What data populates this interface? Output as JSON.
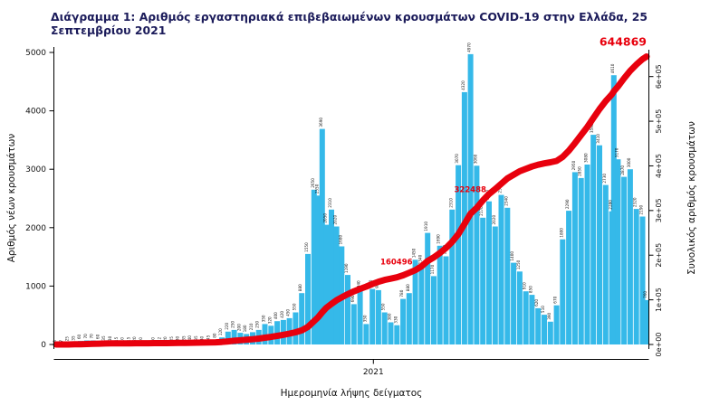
{
  "title": "Διάγραμμα 1: Αριθμός εργαστηριακά επιβεβαιωμένων κρουσμάτων COVID-19 στην Ελλάδα, 25 Σεπτεμβρίου 2021",
  "colors": {
    "bars": "#35b9e9",
    "line": "#e8000d",
    "annotation": "#e8000d",
    "title_text": "#1b1b5a"
  },
  "chart_data": {
    "type": "bar",
    "subtype": "bar+line dual-axis",
    "title": "Διάγραμμα 1: Αριθμός εργαστηριακά επιβεβαιωμένων κρουσμάτων COVID-19 στην Ελλάδα, 25 Σεπτεμβρίου 2021",
    "xlabel": "Ημερομηνία λήψης δείγματος",
    "ylabel_left": "Αριθμός νέων κρουσμάτων",
    "ylabel_right": "Συνολικός αριθμός κρουσμάτων",
    "ylim_left": [
      0,
      5000
    ],
    "ylim_right": [
      0,
      650000
    ],
    "yticks_left": [
      0,
      1000,
      2000,
      3000,
      4000,
      5000
    ],
    "yticks_right": [
      {
        "value": 0,
        "label": "0e+00"
      },
      {
        "value": 100000,
        "label": "1e+05"
      },
      {
        "value": 200000,
        "label": "2e+05"
      },
      {
        "value": 300000,
        "label": "3e+05"
      },
      {
        "value": 400000,
        "label": "4e+05"
      },
      {
        "value": 500000,
        "label": "5e+05"
      },
      {
        "value": 600000,
        "label": "6e+05"
      }
    ],
    "x_ticks": [
      {
        "label": "2021",
        "date": "2021-01-01"
      }
    ],
    "grid": false,
    "legend": "none",
    "x": [
      "2020-02-26",
      "2020-03-03",
      "2020-03-09",
      "2020-03-15",
      "2020-03-21",
      "2020-03-27",
      "2020-04-02",
      "2020-04-08",
      "2020-04-14",
      "2020-04-20",
      "2020-04-26",
      "2020-05-02",
      "2020-05-08",
      "2020-05-14",
      "2020-05-20",
      "2020-05-26",
      "2020-06-01",
      "2020-06-07",
      "2020-06-13",
      "2020-06-19",
      "2020-06-25",
      "2020-07-01",
      "2020-07-07",
      "2020-07-13",
      "2020-07-19",
      "2020-07-25",
      "2020-07-31",
      "2020-08-06",
      "2020-08-12",
      "2020-08-18",
      "2020-08-24",
      "2020-08-30",
      "2020-09-05",
      "2020-09-11",
      "2020-09-17",
      "2020-09-23",
      "2020-09-29",
      "2020-10-05",
      "2020-10-11",
      "2020-10-17",
      "2020-10-23",
      "2020-10-29",
      "2020-11-04",
      "2020-11-08",
      "2020-11-12",
      "2020-11-16",
      "2020-11-21",
      "2020-11-26",
      "2020-12-01",
      "2020-12-07",
      "2020-12-13",
      "2020-12-19",
      "2020-12-25",
      "2020-12-31",
      "2021-01-06",
      "2021-01-12",
      "2021-01-18",
      "2021-01-24",
      "2021-01-30",
      "2021-02-05",
      "2021-02-11",
      "2021-02-17",
      "2021-02-23",
      "2021-03-01",
      "2021-03-07",
      "2021-03-13",
      "2021-03-19",
      "2021-03-25",
      "2021-03-31",
      "2021-04-06",
      "2021-04-12",
      "2021-04-18",
      "2021-04-24",
      "2021-04-30",
      "2021-05-06",
      "2021-05-12",
      "2021-05-18",
      "2021-05-24",
      "2021-05-30",
      "2021-06-05",
      "2021-06-11",
      "2021-06-17",
      "2021-06-23",
      "2021-06-29",
      "2021-07-05",
      "2021-07-11",
      "2021-07-17",
      "2021-07-23",
      "2021-07-29",
      "2021-08-04",
      "2021-08-10",
      "2021-08-16",
      "2021-08-22",
      "2021-08-24",
      "2021-08-28",
      "2021-09-03",
      "2021-09-09",
      "2021-09-15",
      "2021-09-21",
      "2021-09-25"
    ],
    "series": [
      {
        "name": "Αριθμός νέων κρουσμάτων",
        "type": "bar",
        "axis": "left",
        "color": "#35b9e9",
        "values": [
          3,
          7,
          25,
          35,
          60,
          70,
          70,
          60,
          35,
          30,
          15,
          10,
          15,
          20,
          10,
          5,
          10,
          12,
          20,
          25,
          30,
          35,
          40,
          35,
          30,
          45,
          80,
          120,
          220,
          250,
          200,
          180,
          210,
          250,
          350,
          320,
          400,
          420,
          450,
          550,
          880,
          1550,
          2650,
          2550,
          3690,
          2050,
          2310,
          2020,
          1680,
          1190,
          690,
          940,
          350,
          950,
          930,
          550,
          380,
          330,
          780,
          880,
          1450,
          1340,
          1910,
          1170,
          1690,
          1510,
          2310,
          3070,
          4320,
          4970,
          3060,
          2170,
          2450,
          2020,
          2560,
          2340,
          1400,
          1250,
          910,
          850,
          620,
          510,
          390,
          670,
          1800,
          2290,
          2950,
          2850,
          3080,
          3590,
          3410,
          2730,
          2280,
          4610,
          3170,
          2870,
          3000,
          2320,
          2190,
          760
        ]
      },
      {
        "name": "Συνολικός αριθμός κρουσμάτων",
        "type": "line",
        "axis": "right",
        "color": "#e8000d",
        "values": [
          3,
          18,
          84,
          330,
          530,
          990,
          1415,
          1830,
          2170,
          2400,
          2510,
          2590,
          2680,
          2770,
          2850,
          2890,
          2940,
          3010,
          3110,
          3230,
          3380,
          3560,
          3770,
          3980,
          4190,
          4440,
          4890,
          5620,
          6860,
          8220,
          9530,
          10600,
          11800,
          13240,
          15140,
          17000,
          19230,
          21700,
          24300,
          27330,
          31500,
          39250,
          52250,
          61000,
          72000,
          82000,
          91000,
          99000,
          105500,
          112500,
          119000,
          124500,
          129500,
          135500,
          140500,
          144500,
          147500,
          150500,
          155000,
          160496,
          166500,
          175000,
          187000,
          195000,
          205000,
          216000,
          230000,
          247000,
          270000,
          293000,
          306000,
          322488,
          337000,
          348000,
          360000,
          372000,
          380000,
          388000,
          393500,
          398500,
          402500,
          405500,
          408000,
          411000,
          420000,
          434000,
          451000,
          469000,
          487000,
          507000,
          527000,
          545000,
          560000,
          567000,
          578000,
          596000,
          613000,
          627000,
          639000,
          644869
        ]
      }
    ],
    "annotations": [
      {
        "text": "160496",
        "date": "2021-02-05",
        "value": 160496,
        "size": "small"
      },
      {
        "text": "322488",
        "date": "2021-04-18",
        "value": 322488,
        "size": "small"
      },
      {
        "text": "644869",
        "date": "2021-09-25",
        "value": 644869,
        "size": "large"
      }
    ]
  }
}
